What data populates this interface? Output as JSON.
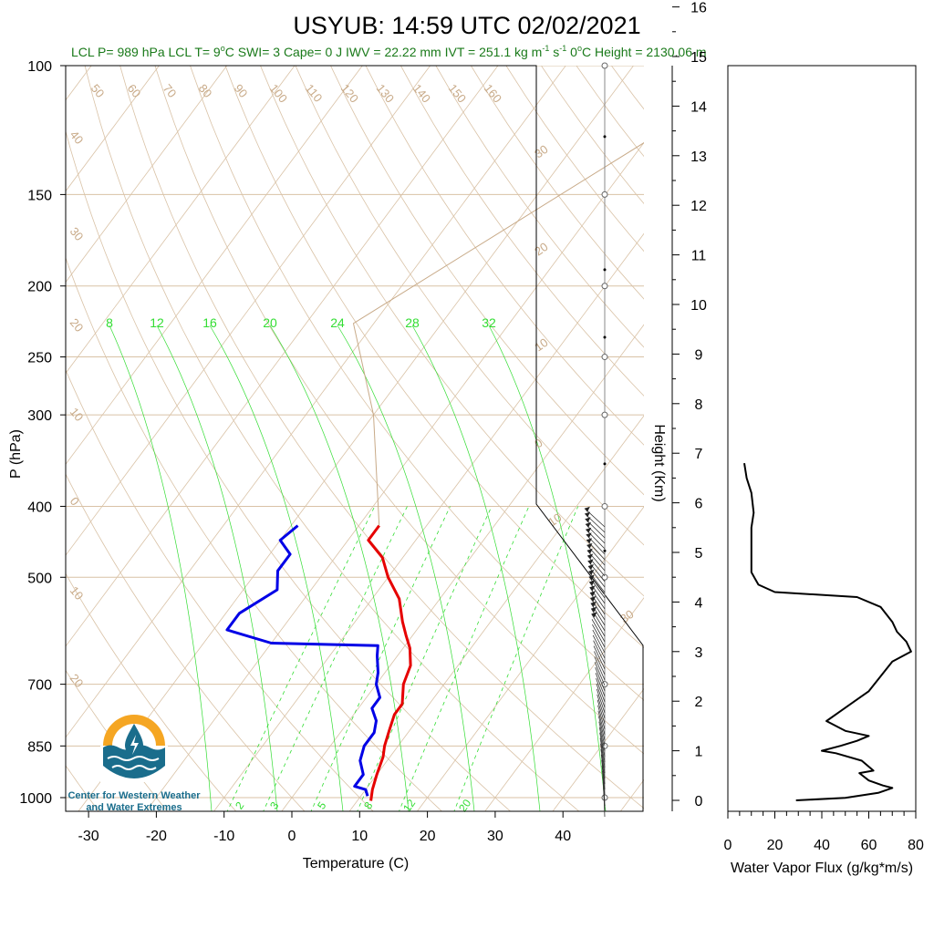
{
  "title": "USYUB: 14:59 UTC 02/02/2021",
  "info": {
    "lcl_p": "LCL P= 989 hPa",
    "lcl_t": "LCL T= 9",
    "lcl_t_unit": "C",
    "swi": "SWI= 3",
    "cape": "Cape= 0 J",
    "iwv": "IWV = 22.22 mm",
    "ivt": "IVT = 251.1 kg m",
    "ivt_exp1": "-1",
    "ivt_s": " s",
    "ivt_exp2": "-1",
    "zero_height": "0",
    "zero_height_rest": "C Height = 2130.06 m"
  },
  "colors": {
    "temperature": "#e60000",
    "dewpoint": "#0000e6",
    "isotherm": "#d9c2a6",
    "mixing_ratio": "#33dd33",
    "logo_orange": "#f5a623",
    "logo_blue": "#1a6d8c"
  },
  "skewt": {
    "xlabel": "Temperature (C)",
    "ylabel": "P (hPa)",
    "x_ticks": [
      "-30",
      "-20",
      "-10",
      "0",
      "10",
      "20",
      "30",
      "40"
    ],
    "x_tick_values": [
      -30,
      -20,
      -10,
      0,
      10,
      20,
      30,
      40
    ],
    "p_ticks": [
      "100",
      "150",
      "200",
      "250",
      "300",
      "400",
      "500",
      "700",
      "850",
      "1000"
    ],
    "p_tick_values": [
      100,
      150,
      200,
      250,
      300,
      400,
      500,
      700,
      850,
      1000
    ],
    "xlim": [
      -34,
      50
    ],
    "plim": [
      1050,
      100
    ],
    "isotherm_labels_top": [
      "50",
      "60",
      "70",
      "80",
      "90",
      "100",
      "110",
      "120",
      "130",
      "140",
      "150",
      "160"
    ],
    "isotherm_labels_left": [
      "40",
      "30",
      "20",
      "10",
      "0",
      "10",
      "20"
    ],
    "isotherm_labels_right": [
      "30",
      "20",
      "10",
      "0",
      "10",
      "30"
    ],
    "mixing_labels_upper": [
      "8",
      "12",
      "16",
      "20",
      "24",
      "28",
      "32"
    ],
    "mixing_labels_lower": [
      "2",
      "3",
      "5",
      "8",
      "12",
      "20"
    ]
  },
  "height_axis": {
    "label": "Height (Km)",
    "ticks": [
      "0",
      "1",
      "2",
      "3",
      "4",
      "5",
      "6",
      "7",
      "8",
      "9",
      "10",
      "11",
      "12",
      "13",
      "14",
      "15",
      "16"
    ]
  },
  "flux": {
    "xlabel": "Water Vapor Flux (g/kg*m/s)",
    "x_ticks": [
      "0",
      "20",
      "40",
      "60",
      "80"
    ],
    "xlim": [
      0,
      80
    ],
    "ylim_km": [
      0,
      16.3
    ]
  },
  "logo": {
    "line1": "Center for Western Weather",
    "line2": "and Water Extremes"
  },
  "chart_data": [
    {
      "type": "line",
      "chart": "skew-t",
      "title": "USYUB: 14:59 UTC 02/02/2021",
      "xlabel": "Temperature (C)",
      "ylabel": "P (hPa)",
      "xlim": [
        -34,
        50
      ],
      "ylim": [
        1050,
        100
      ],
      "log_y": true,
      "series": [
        {
          "points": [
            [
              12,
              1010
            ],
            [
              11,
              975
            ],
            [
              10,
              930
            ],
            [
              9,
              880
            ],
            [
              8,
              850
            ],
            [
              7,
              810
            ],
            [
              6,
              770
            ],
            [
              6,
              745
            ],
            [
              4,
              700
            ],
            [
              3,
              660
            ],
            [
              1,
              625
            ],
            [
              -1,
              600
            ],
            [
              -3,
              575
            ],
            [
              -6,
              535
            ],
            [
              -10,
              500
            ],
            [
              -13,
              470
            ],
            [
              -17,
              445
            ],
            [
              -17,
              425
            ]
          ]
        },
        {
          "points": [
            [
              11,
              995
            ],
            [
              10,
              975
            ],
            [
              8,
              965
            ],
            [
              8,
              930
            ],
            [
              6,
              890
            ],
            [
              5,
              850
            ],
            [
              5,
              815
            ],
            [
              4,
              785
            ],
            [
              2,
              755
            ],
            [
              2,
              730
            ],
            [
              0,
              700
            ],
            [
              -1,
              675
            ],
            [
              -3,
              640
            ],
            [
              -4,
              620
            ],
            [
              -20,
              615
            ],
            [
              -28,
              590
            ],
            [
              -28,
              560
            ],
            [
              -25,
              520
            ],
            [
              -27,
              490
            ],
            [
              -27,
              465
            ],
            [
              -30,
              445
            ],
            [
              -29,
              425
            ]
          ]
        },
        {
          "points": [
            [
              -17,
              425
            ],
            [
              -30,
              300
            ],
            [
              -43,
              225
            ],
            [
              -14,
              110
            ]
          ]
        }
      ]
    },
    {
      "type": "line",
      "chart": "water-vapor-flux-profile",
      "xlabel": "Water Vapor Flux (g/kg*m/s)",
      "ylabel": "Height (Km)",
      "xlim": [
        0,
        80
      ],
      "ylim": [
        0,
        16.3
      ],
      "series": [
        {
          "points": [
            [
              29,
              0
            ],
            [
              50,
              0.05
            ],
            [
              64,
              0.15
            ],
            [
              70,
              0.25
            ],
            [
              66,
              0.3
            ],
            [
              60,
              0.4
            ],
            [
              56,
              0.55
            ],
            [
              62,
              0.6
            ],
            [
              57,
              0.8
            ],
            [
              46,
              0.95
            ],
            [
              40,
              1.0
            ],
            [
              48,
              1.1
            ],
            [
              55,
              1.2
            ],
            [
              60,
              1.3
            ],
            [
              50,
              1.4
            ],
            [
              42,
              1.6
            ],
            [
              48,
              1.8
            ],
            [
              54,
              2.0
            ],
            [
              60,
              2.2
            ],
            [
              65,
              2.5
            ],
            [
              70,
              2.8
            ],
            [
              78,
              3.0
            ],
            [
              76,
              3.2
            ],
            [
              72,
              3.4
            ],
            [
              70,
              3.6
            ],
            [
              65,
              3.9
            ],
            [
              55,
              4.1
            ],
            [
              20,
              4.2
            ],
            [
              13,
              4.35
            ],
            [
              10,
              4.6
            ],
            [
              10,
              5.0
            ],
            [
              10,
              5.5
            ],
            [
              11,
              5.8
            ],
            [
              10,
              6.2
            ],
            [
              8,
              6.5
            ],
            [
              7,
              6.8
            ]
          ]
        }
      ]
    }
  ]
}
